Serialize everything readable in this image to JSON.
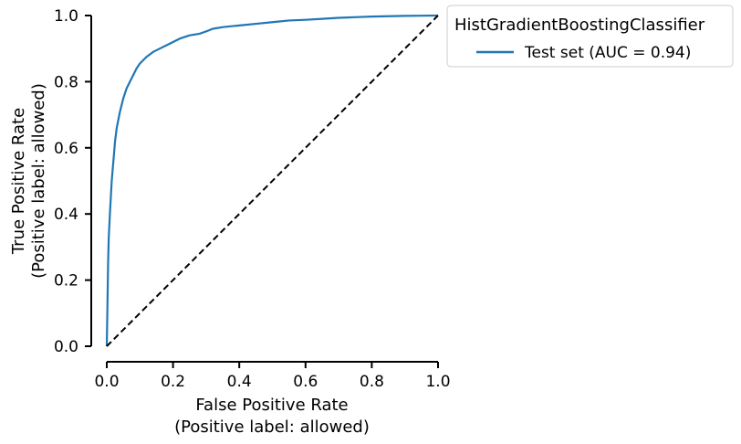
{
  "chart_data": {
    "type": "line",
    "xlabel": [
      "False Positive Rate",
      "(Positive label: allowed)"
    ],
    "ylabel": [
      "True Positive Rate",
      "(Positive label: allowed)"
    ],
    "xlim": [
      0,
      1
    ],
    "ylim": [
      0,
      1
    ],
    "xticks": [
      "0.0",
      "0.2",
      "0.4",
      "0.6",
      "0.8",
      "1.0"
    ],
    "yticks": [
      "0.0",
      "0.2",
      "0.4",
      "0.6",
      "0.8",
      "1.0"
    ],
    "grid": false,
    "legend": {
      "title": "HistGradientBoostingClassifier",
      "placement": "outside-upper-right"
    },
    "series": [
      {
        "name": "Test set (AUC = 0.94)",
        "color": "#1f77b4",
        "style": "solid",
        "x": [
          0,
          0.002,
          0.004,
          0.006,
          0.01,
          0.015,
          0.02,
          0.025,
          0.03,
          0.04,
          0.05,
          0.06,
          0.07,
          0.08,
          0.09,
          0.1,
          0.12,
          0.14,
          0.16,
          0.18,
          0.2,
          0.22,
          0.25,
          0.28,
          0.3,
          0.32,
          0.35,
          0.4,
          0.45,
          0.5,
          0.55,
          0.6,
          0.65,
          0.7,
          0.75,
          0.8,
          0.85,
          0.9,
          0.95,
          1.0
        ],
        "y": [
          0,
          0.12,
          0.25,
          0.33,
          0.41,
          0.5,
          0.56,
          0.62,
          0.66,
          0.71,
          0.75,
          0.78,
          0.8,
          0.82,
          0.84,
          0.855,
          0.875,
          0.89,
          0.9,
          0.91,
          0.92,
          0.93,
          0.94,
          0.945,
          0.952,
          0.96,
          0.965,
          0.97,
          0.975,
          0.98,
          0.985,
          0.987,
          0.99,
          0.993,
          0.995,
          0.997,
          0.998,
          0.999,
          0.9995,
          1.0
        ]
      },
      {
        "color": "#000000",
        "style": "dashed",
        "x": [
          0,
          1
        ],
        "y": [
          0,
          1
        ]
      }
    ]
  }
}
